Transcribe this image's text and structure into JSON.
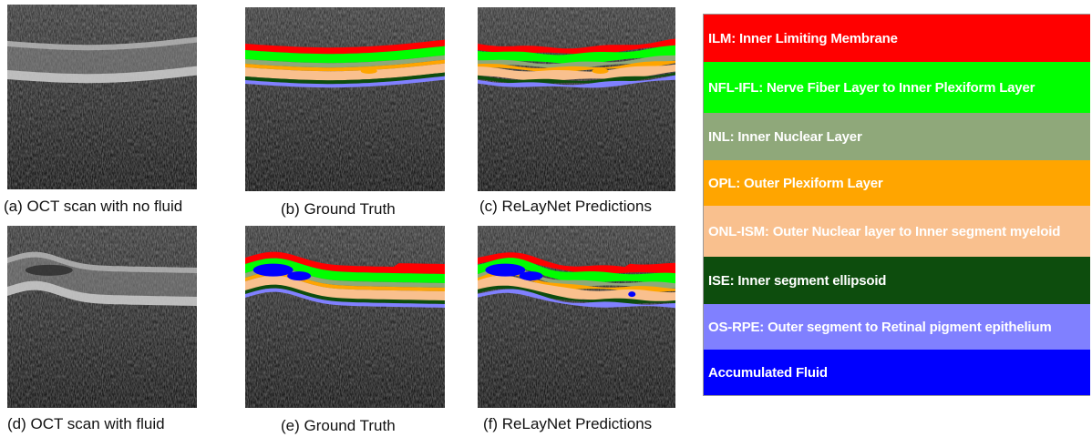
{
  "panels": [
    {
      "id": "a",
      "caption": "(a) OCT scan with no fluid",
      "kind": "raw"
    },
    {
      "id": "b",
      "caption": "(b) Ground Truth",
      "kind": "seg"
    },
    {
      "id": "c",
      "caption": "(c) ReLayNet Predictions",
      "kind": "seg"
    },
    {
      "id": "d",
      "caption": "(d) OCT scan with fluid",
      "kind": "raw"
    },
    {
      "id": "e",
      "caption": "(e) Ground Truth",
      "kind": "seg"
    },
    {
      "id": "f",
      "caption": "(f) ReLayNet Predictions",
      "kind": "seg"
    }
  ],
  "legend": [
    {
      "label": "ILM: Inner Limiting Membrane",
      "color": "#ff0000"
    },
    {
      "label": "NFL-IFL: Nerve Fiber Layer to Inner Plexiform Layer",
      "color": "#00ff00"
    },
    {
      "label": "INL: Inner Nuclear Layer",
      "color": "#8fa87a"
    },
    {
      "label": "OPL: Outer Plexiform Layer",
      "color": "#ffa500"
    },
    {
      "label": "ONL-ISM: Outer Nuclear layer to Inner segment myeloid",
      "color": "#f9c08e"
    },
    {
      "label": "ISE: Inner segment ellipsoid",
      "color": "#0d4d0d"
    },
    {
      "label": "OS-RPE: Outer segment to Retinal pigment epithelium",
      "color": "#8080ff"
    },
    {
      "label": "Accumulated Fluid",
      "color": "#0000ff"
    }
  ]
}
